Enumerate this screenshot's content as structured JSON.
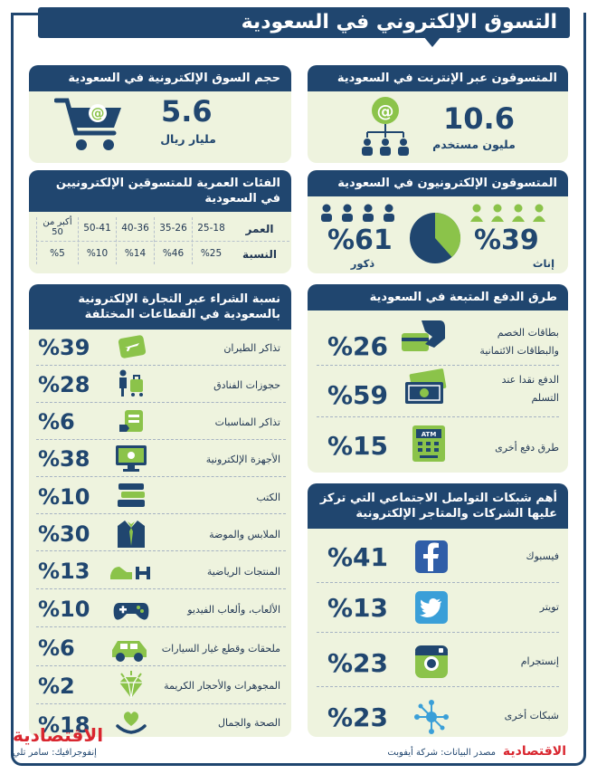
{
  "title": "التسوق الإلكتروني في السعودية",
  "colors": {
    "navy": "#20466f",
    "panel": "#eef3de",
    "green": "#8bc34a",
    "red": "#d9262f"
  },
  "market_size": {
    "heading": "حجم السوق الإلكترونية في السعودية",
    "value": "5.6",
    "unit": "مليار ريال"
  },
  "internet_users": {
    "heading": "المتسوقون عبر الإنترنت في السعودية",
    "value": "10.6",
    "unit": "مليون مستخدم"
  },
  "age_groups": {
    "heading": "الفئات العمرية للمتسوقين الإلكترونيين في السعودية",
    "row_age_label": "العمر",
    "row_pct_label": "النسبة",
    "groups": [
      {
        "age": "25-18",
        "pct": "%25"
      },
      {
        "age": "35-26",
        "pct": "%46"
      },
      {
        "age": "40-36",
        "pct": "%14"
      },
      {
        "age": "50-41",
        "pct": "%10"
      },
      {
        "age": "أكبر من 50",
        "pct": "%5"
      }
    ]
  },
  "gender": {
    "heading": "المتسوقون الإلكترونيون في السعودية",
    "female_value": "%39",
    "female_label": "إناث",
    "male_value": "%61",
    "male_label": "ذكور"
  },
  "sectors": {
    "heading": "نسبة الشراء عبر التجارة الإلكترونية بالسعودية في القطاعات المختلفة",
    "items": [
      {
        "label": "تذاكر الطيران",
        "value": "%39",
        "icon": "plane-ticket-icon"
      },
      {
        "label": "حجوزات الفنادق",
        "value": "%28",
        "icon": "hotel-luggage-icon"
      },
      {
        "label": "تذاكر المناسبات",
        "value": "%6",
        "icon": "event-ticket-icon"
      },
      {
        "label": "الأجهزة الإلكترونية",
        "value": "%38",
        "icon": "computer-icon"
      },
      {
        "label": "الكتب",
        "value": "%10",
        "icon": "books-icon"
      },
      {
        "label": "الملابس والموضة",
        "value": "%30",
        "icon": "suit-icon"
      },
      {
        "label": "المنتجات الرياضية",
        "value": "%13",
        "icon": "sports-icon"
      },
      {
        "label": "الألعاب، وألعاب الفيديو",
        "value": "%10",
        "icon": "gamepad-icon"
      },
      {
        "label": "ملحقات وقطع غيار السيارات",
        "value": "%6",
        "icon": "car-icon"
      },
      {
        "label": "المجوهرات والأحجار الكريمة",
        "value": "%2",
        "icon": "diamond-icon"
      },
      {
        "label": "الصحة والجمال",
        "value": "%18",
        "icon": "health-heart-icon"
      }
    ]
  },
  "payment": {
    "heading": "طرق الدفع المتبعة في السعودية",
    "items": [
      {
        "label": "بطاقات الخصم والبطاقات الائتمانية",
        "value": "%26",
        "icon": "credit-card-icon"
      },
      {
        "label": "الدفع نقدا عند التسلم",
        "value": "%59",
        "icon": "cash-icon"
      },
      {
        "label": "طرق دفع أخرى",
        "value": "%15",
        "icon": "atm-icon"
      }
    ]
  },
  "social": {
    "heading": "أهم شبكات التواصل الاجتماعي التي تركز عليها الشركات والمتاجر الإلكترونية",
    "items": [
      {
        "label": "فيسبوك",
        "value": "%41",
        "icon": "facebook-icon"
      },
      {
        "label": "تويتر",
        "value": "%13",
        "icon": "twitter-icon"
      },
      {
        "label": "إنستجرام",
        "value": "%23",
        "icon": "instagram-icon"
      },
      {
        "label": "شبكات أخرى",
        "value": "%23",
        "icon": "network-icon"
      }
    ]
  },
  "footer": {
    "credit": "إنفوجرافيك: سامر تلي",
    "source": "مصدر البيانات: شركة أيفوبت",
    "logo": "الاقتصادية"
  }
}
